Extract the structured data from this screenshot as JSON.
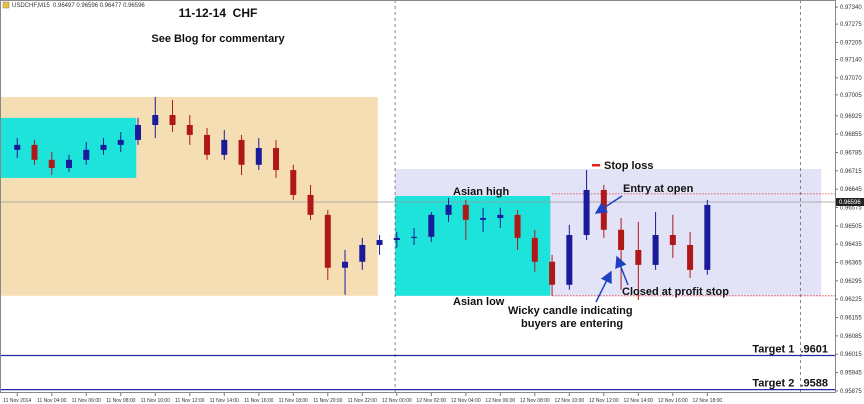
{
  "chart_data": {
    "type": "candlestick",
    "header": "USDCHF,M15  0.96497 0.96596 0.96477 0.96596",
    "title": "11-12-14  CHF",
    "subtitle": "See Blog for commentary",
    "x": [
      2,
      3,
      4,
      5,
      6,
      7,
      8,
      9,
      10,
      11,
      12,
      13,
      14,
      15,
      16,
      17,
      18,
      19,
      20,
      21,
      22,
      23,
      24,
      25,
      26,
      27,
      28,
      29,
      30,
      31,
      32,
      33,
      34,
      35,
      36,
      37,
      38,
      39,
      40,
      41,
      42
    ],
    "open": [
      0.96795,
      0.96814,
      0.96757,
      0.96726,
      0.96757,
      0.96795,
      0.96814,
      0.96833,
      0.9689,
      0.96928,
      0.9689,
      0.96852,
      0.96776,
      0.96833,
      0.96738,
      0.96802,
      0.96718,
      0.96623,
      0.96547,
      0.96345,
      0.96368,
      0.96432,
      0.96451,
      0.96459,
      0.96463,
      0.96547,
      0.96585,
      0.96528,
      0.96535,
      0.96547,
      0.96459,
      0.96368,
      0.9628,
      0.9647,
      0.96642,
      0.9649,
      0.96413,
      0.96356,
      0.9647,
      0.96432,
      0.96337
    ],
    "high": [
      0.9684,
      0.96833,
      0.96787,
      0.96776,
      0.96825,
      0.9684,
      0.96863,
      0.96917,
      0.96997,
      0.96986,
      0.96928,
      0.96879,
      0.96871,
      0.96852,
      0.9684,
      0.96833,
      0.96738,
      0.96661,
      0.96566,
      0.96413,
      0.96459,
      0.9647,
      0.96482,
      0.96497,
      0.96558,
      0.96612,
      0.96604,
      0.96574,
      0.96574,
      0.96566,
      0.9649,
      0.96394,
      0.96509,
      0.96718,
      0.96661,
      0.96535,
      0.9652,
      0.96558,
      0.96547,
      0.96482,
      0.96604
    ],
    "low": [
      0.96764,
      0.96738,
      0.96699,
      0.96711,
      0.96738,
      0.96776,
      0.96787,
      0.96814,
      0.9684,
      0.96863,
      0.96814,
      0.96757,
      0.96757,
      0.96699,
      0.96718,
      0.96688,
      0.96604,
      0.96528,
      0.96299,
      0.96242,
      0.96337,
      0.96394,
      0.96421,
      0.96432,
      0.96444,
      0.9652,
      0.96451,
      0.96482,
      0.96497,
      0.96413,
      0.9633,
      0.96238,
      0.96261,
      0.96451,
      0.96459,
      0.96261,
      0.96222,
      0.96337,
      0.96383,
      0.96306,
      0.96318
    ],
    "close": [
      0.96814,
      0.96757,
      0.96726,
      0.96757,
      0.96795,
      0.96814,
      0.96833,
      0.9689,
      0.96928,
      0.9689,
      0.96852,
      0.96776,
      0.96833,
      0.96738,
      0.96802,
      0.96718,
      0.96623,
      0.96547,
      0.96345,
      0.96368,
      0.96432,
      0.96451,
      0.96459,
      0.96463,
      0.96547,
      0.96585,
      0.96528,
      0.96535,
      0.96547,
      0.96459,
      0.96368,
      0.9628,
      0.9647,
      0.96642,
      0.9649,
      0.96413,
      0.96356,
      0.9647,
      0.96432,
      0.96337,
      0.96585
    ],
    "up_color": "#1a1a9a",
    "down_color": "#b01818",
    "xlim": [
      1,
      49.4
    ],
    "ylim": [
      0.95867,
      0.97367
    ],
    "xticks": [
      {
        "value": 2,
        "label": "11 Nov 2014"
      },
      {
        "value": 4,
        "label": "11 Nov 04:00"
      },
      {
        "value": 6,
        "label": "11 Nov 06:00"
      },
      {
        "value": 8,
        "label": "11 Nov 08:00"
      },
      {
        "value": 10,
        "label": "11 Nov 10:00"
      },
      {
        "value": 12,
        "label": "11 Nov 12:00"
      },
      {
        "value": 14,
        "label": "11 Nov 14:00"
      },
      {
        "value": 16,
        "label": "11 Nov 16:00"
      },
      {
        "value": 18,
        "label": "11 Nov 18:00"
      },
      {
        "value": 20,
        "label": "11 Nov 20:00"
      },
      {
        "value": 22,
        "label": "11 Nov 22:00"
      },
      {
        "value": 24,
        "label": "12 Nov 00:00"
      },
      {
        "value": 26,
        "label": "12 Nov 02:00"
      },
      {
        "value": 28,
        "label": "12 Nov 04:00"
      },
      {
        "value": 30,
        "label": "12 Nov 06:00"
      },
      {
        "value": 32,
        "label": "12 Nov 08:00"
      },
      {
        "value": 34,
        "label": "12 Nov 10:00"
      },
      {
        "value": 36,
        "label": "12 Nov 12:00"
      },
      {
        "value": 38,
        "label": "12 Nov 14:00"
      },
      {
        "value": 40,
        "label": "12 Nov 16:00"
      },
      {
        "value": 42,
        "label": "12 Nov 18:00"
      }
    ],
    "yticks": [
      {
        "value": 0.9734,
        "label": "0.97340"
      },
      {
        "value": 0.97275,
        "label": "0.97275"
      },
      {
        "value": 0.97205,
        "label": "0.97205"
      },
      {
        "value": 0.9714,
        "label": "0.97140"
      },
      {
        "value": 0.9707,
        "label": "0.97070"
      },
      {
        "value": 0.97005,
        "label": "0.97005"
      },
      {
        "value": 0.96925,
        "label": "0.96925"
      },
      {
        "value": 0.96855,
        "label": "0.96855"
      },
      {
        "value": 0.96785,
        "label": "0.96785"
      },
      {
        "value": 0.96715,
        "label": "0.96715"
      },
      {
        "value": 0.96645,
        "label": "0.96645"
      },
      {
        "value": 0.96575,
        "label": "0.96575"
      },
      {
        "value": 0.96505,
        "label": "0.96505"
      },
      {
        "value": 0.96435,
        "label": "0.96435"
      },
      {
        "value": 0.96365,
        "label": "0.96365"
      },
      {
        "value": 0.96295,
        "label": "0.96295"
      },
      {
        "value": 0.96225,
        "label": "0.96225"
      },
      {
        "value": 0.96155,
        "label": "0.96155"
      },
      {
        "value": 0.96085,
        "label": "0.96085"
      },
      {
        "value": 0.96015,
        "label": "0.96015"
      },
      {
        "value": 0.95945,
        "label": "0.95945"
      },
      {
        "value": 0.95875,
        "label": "0.95875"
      }
    ],
    "current_price": 0.96596,
    "zones": [
      {
        "xlim": [
          1,
          22.9
        ],
        "ylim": [
          0.96238,
          0.96997
        ],
        "color": "#f6deb4"
      },
      {
        "xlim": [
          1,
          8.9
        ],
        "ylim": [
          0.96688,
          0.96917
        ],
        "color": "#1ee3da"
      },
      {
        "xlim": [
          23.9,
          48.6
        ],
        "ylim": [
          0.96238,
          0.96722
        ],
        "color": "#e3e3f7"
      },
      {
        "xlim": [
          23.9,
          32.9
        ],
        "ylim": [
          0.96238,
          0.96619
        ],
        "color": "#1ee3da"
      }
    ],
    "vlines": [
      23.9,
      47.4
    ],
    "levels": [
      {
        "value": 0.96627,
        "from": 33,
        "color": "#e03030",
        "style": "dotted"
      },
      {
        "value": 0.96238,
        "from": 33,
        "color": "#e03030",
        "style": "dotted"
      },
      {
        "value": 0.9601,
        "from": 1,
        "color": "#2828a8",
        "style": "solid",
        "label": "Target 1  .9601"
      },
      {
        "value": 0.9588,
        "from": 1,
        "color": "#2828a8",
        "style": "solid",
        "label": "Target 2  .9588"
      }
    ],
    "annotations": [
      "Stop loss",
      "Entry at open",
      "Asian high",
      "Asian low",
      "Closed at profit stop",
      "Wicky candle indicating",
      "buyers are entering"
    ]
  }
}
